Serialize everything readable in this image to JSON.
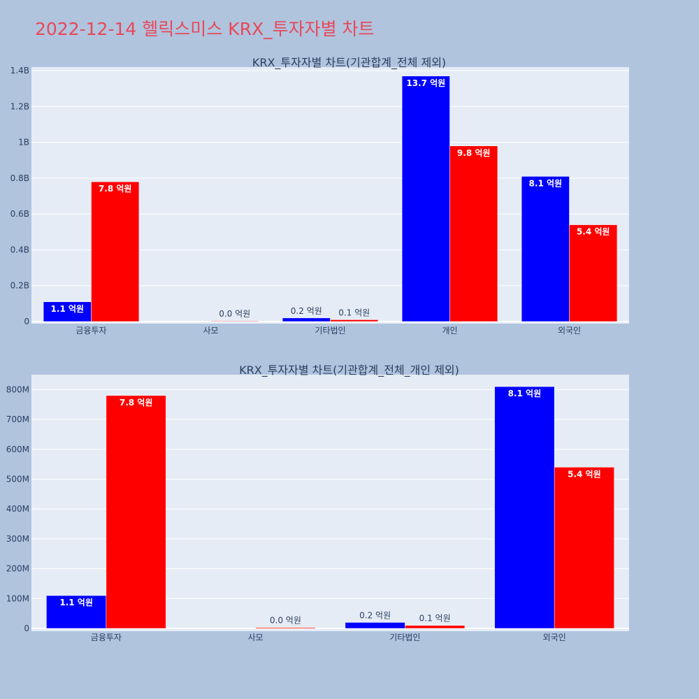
{
  "page": {
    "title": "2022-12-14 헬릭스미스 KRX_투자자별 차트",
    "background": "#b0c4de",
    "title_color": "#e8485a"
  },
  "colors": {
    "plot_bg": "#e5ecf6",
    "series_1": "#0000ff",
    "series_2": "#ff0000",
    "text": "#2a3f5f"
  },
  "chart_data": [
    {
      "type": "bar",
      "title": "KRX_투자자별 차트(기관합계_전체 제외)",
      "categories": [
        "금융투자",
        "사모",
        "기타법인",
        "개인",
        "외국인"
      ],
      "series": [
        {
          "color": "#0000ff",
          "values": [
            110000000,
            0,
            20000000,
            1370000000,
            810000000
          ],
          "labels": [
            "1.1 억원",
            "",
            "0.2 억원",
            "13.7 억원",
            "8.1 억원"
          ]
        },
        {
          "color": "#ff0000",
          "values": [
            780000000,
            3000000,
            10000000,
            980000000,
            540000000
          ],
          "labels": [
            "7.8 억원",
            "0.0 억원",
            "0.1 억원",
            "9.8 억원",
            "5.4 억원"
          ]
        }
      ],
      "ylim": [
        0,
        1420000000
      ],
      "yticks": [
        0,
        200000000,
        400000000,
        600000000,
        800000000,
        1000000000,
        1200000000,
        1400000000
      ],
      "ytick_labels": [
        "0",
        "0.2B",
        "0.4B",
        "0.6B",
        "0.8B",
        "1B",
        "1.2B",
        "1.4B"
      ],
      "grid": true,
      "legend": "none"
    },
    {
      "type": "bar",
      "title": "KRX_투자자별 차트(기관합계_전체_개인 제외)",
      "categories": [
        "금융투자",
        "사모",
        "기타법인",
        "외국인"
      ],
      "series": [
        {
          "color": "#0000ff",
          "values": [
            110000000,
            0,
            20000000,
            810000000
          ],
          "labels": [
            "1.1 억원",
            "",
            "0.2 억원",
            "8.1 억원"
          ]
        },
        {
          "color": "#ff0000",
          "values": [
            780000000,
            3000000,
            10000000,
            540000000
          ],
          "labels": [
            "7.8 억원",
            "0.0 억원",
            "0.1 억원",
            "5.4 억원"
          ]
        }
      ],
      "ylim": [
        0,
        850000000
      ],
      "yticks": [
        0,
        100000000,
        200000000,
        300000000,
        400000000,
        500000000,
        600000000,
        700000000,
        800000000
      ],
      "ytick_labels": [
        "0",
        "100M",
        "200M",
        "300M",
        "400M",
        "500M",
        "600M",
        "700M",
        "800M"
      ],
      "grid": true,
      "legend": "none"
    }
  ]
}
